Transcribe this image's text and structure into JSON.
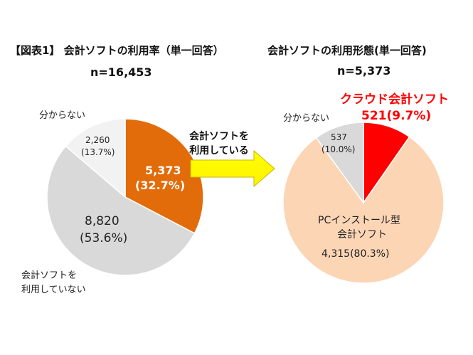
{
  "charts": {
    "left": {
      "title": "【図表1】 会計ソフトの利用率（単一回答）",
      "n": "n=16,453"
    },
    "right": {
      "title": "会計ソフトの利用形態(単一回答)",
      "n": "n=5,373"
    },
    "arrow_label": [
      "会計ソフトを",
      "利用している"
    ]
  },
  "chart_data": [
    {
      "type": "pie",
      "title": "【図表1】 会計ソフトの利用率（単一回答）",
      "subtitle": "n=16,453",
      "slices": [
        {
          "label": "会計ソフトを利用している",
          "value": 5373,
          "percent": 32.7,
          "value_label": "5,373",
          "percent_label": "(32.7%)",
          "color": "#e26b0a"
        },
        {
          "label": "会計ソフトを利用していない",
          "display_label": [
            "会計ソフトを",
            "利用していない"
          ],
          "value": 8820,
          "percent": 53.6,
          "value_label": "8,820",
          "percent_label": "(53.6%)",
          "color": "#d9d9d9"
        },
        {
          "label": "分からない",
          "value": 2260,
          "percent": 13.7,
          "value_label": "2,260",
          "percent_label": "(13.7%)",
          "color": "#f2f2f2"
        }
      ]
    },
    {
      "type": "pie",
      "title": "会計ソフトの利用形態(単一回答)",
      "subtitle": "n=5,373",
      "slices": [
        {
          "label": "クラウド会計ソフト",
          "value": 521,
          "percent": 9.7,
          "value_label": "521(9.7%)",
          "color": "#ff0000",
          "label_color": "#ff0000"
        },
        {
          "label": "PCインストール型会計ソフト",
          "display_label": [
            "PCインストール型",
            "会計ソフト"
          ],
          "value": 4315,
          "percent": 80.3,
          "value_label": "4,315(80.3%)",
          "color": "#fcd5b5"
        },
        {
          "label": "分からない",
          "value": 537,
          "percent": 10.0,
          "value_label": "537",
          "percent_label": "(10.0%)",
          "color": "#d9d9d9"
        }
      ]
    }
  ]
}
